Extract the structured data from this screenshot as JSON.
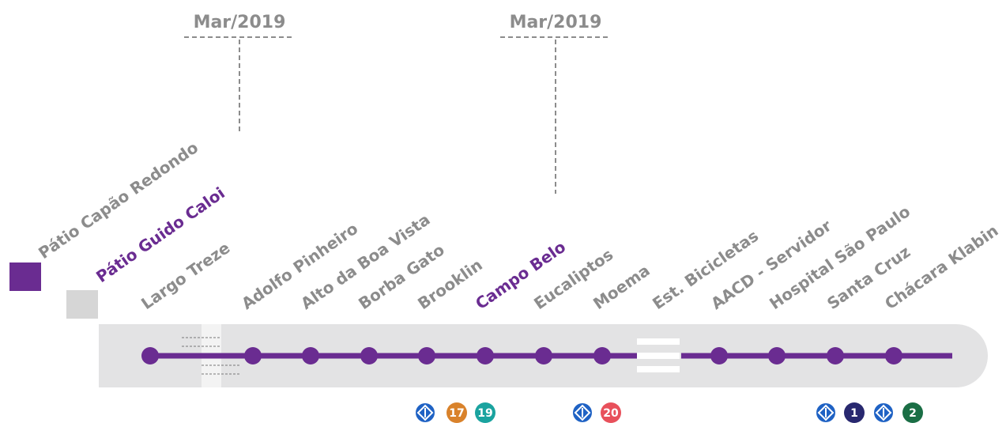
{
  "annotations": [
    {
      "label": "Mar/2019"
    },
    {
      "label": "Mar/2019"
    }
  ],
  "stations": [
    {
      "name": "Pátio Capão Redondo",
      "highlighted": false
    },
    {
      "name": "Pátio Guido Caloi",
      "highlighted": true
    },
    {
      "name": "Largo Treze",
      "highlighted": false
    },
    {
      "name": "Adolfo Pinheiro",
      "highlighted": false
    },
    {
      "name": "Alto da Boa Vista",
      "highlighted": false
    },
    {
      "name": "Borba Gato",
      "highlighted": false
    },
    {
      "name": "Brooklin",
      "highlighted": false
    },
    {
      "name": "Campo Belo",
      "highlighted": true
    },
    {
      "name": "Eucaliptos",
      "highlighted": false
    },
    {
      "name": "Moema",
      "highlighted": false
    },
    {
      "name": "Est. Bicicletas",
      "highlighted": false
    },
    {
      "name": "AACD - Servidor",
      "highlighted": false
    },
    {
      "name": "Hospital São Paulo",
      "highlighted": false
    },
    {
      "name": "Santa Cruz",
      "highlighted": false
    },
    {
      "name": "Chácara Klabin",
      "highlighted": false
    }
  ],
  "connections": [
    {
      "lines": [
        {
          "label": "17",
          "color": "#d9822b"
        },
        {
          "label": "19",
          "color": "#1aa39f"
        }
      ]
    },
    {
      "lines": [
        {
          "label": "20",
          "color": "#e8505b"
        }
      ]
    },
    {
      "lines": [
        {
          "label": "1",
          "color": "#28286f"
        }
      ]
    },
    {
      "lines": [
        {
          "label": "2",
          "color": "#1a6e45"
        }
      ]
    }
  ]
}
